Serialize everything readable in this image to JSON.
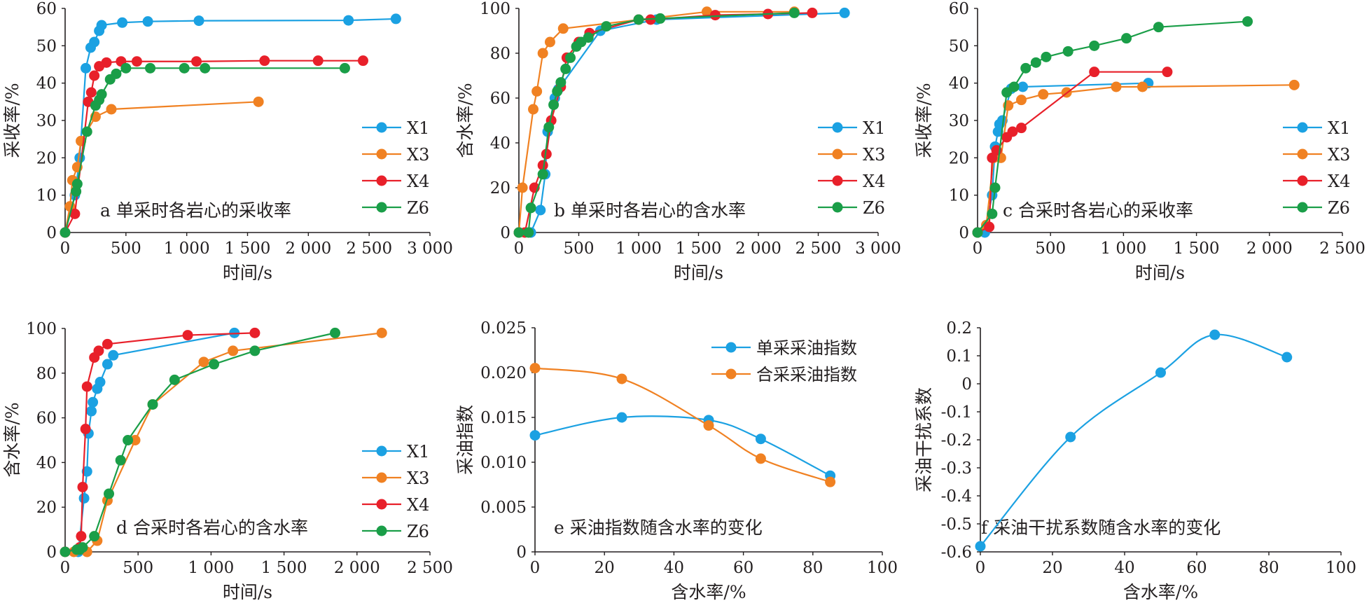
{
  "series_styles": {
    "X1": {
      "color": "#1ba1e2"
    },
    "X3": {
      "color": "#f08122"
    },
    "X4": {
      "color": "#e8202a"
    },
    "Z6": {
      "color": "#1a9e48"
    },
    "单采采油指数": {
      "color": "#1ba1e2"
    },
    "合采采油指数": {
      "color": "#f08122"
    }
  },
  "chart_data": [
    {
      "id": "a",
      "type": "line",
      "caption": "a 单采时各岩心的采收率",
      "xlabel": "时间/s",
      "ylabel": "采收率/%",
      "xlim": [
        0,
        3000
      ],
      "ylim": [
        0,
        60
      ],
      "xticks": [
        0,
        500,
        1000,
        1500,
        2000,
        2500,
        3000
      ],
      "xticklabels": [
        "0",
        "500",
        "1 000",
        "1 500",
        "2 000",
        "2 500",
        "3 000"
      ],
      "yticks": [
        0,
        10,
        20,
        30,
        40,
        50,
        60
      ],
      "yticklabels": [
        "0",
        "10",
        "20",
        "30",
        "40",
        "50",
        "60"
      ],
      "legend_position": "lower-right",
      "series": [
        {
          "name": "X1",
          "points": [
            [
              0,
              0
            ],
            [
              80,
              10
            ],
            [
              120,
              20
            ],
            [
              170,
              44
            ],
            [
              210,
              49.5
            ],
            [
              240,
              51
            ],
            [
              280,
              54
            ],
            [
              300,
              55.5
            ],
            [
              470,
              56.2
            ],
            [
              680,
              56.5
            ],
            [
              1100,
              56.7
            ],
            [
              2330,
              56.8
            ],
            [
              2720,
              57.2
            ]
          ]
        },
        {
          "name": "X3",
          "points": [
            [
              0,
              0
            ],
            [
              40,
              7
            ],
            [
              60,
              14
            ],
            [
              100,
              17.5
            ],
            [
              130,
              24.5
            ],
            [
              250,
              31
            ],
            [
              380,
              33
            ],
            [
              1590,
              35
            ]
          ]
        },
        {
          "name": "X4",
          "points": [
            [
              0,
              0
            ],
            [
              80,
              5
            ],
            [
              190,
              35
            ],
            [
              215,
              37.5
            ],
            [
              240,
              42
            ],
            [
              280,
              44.5
            ],
            [
              340,
              45.5
            ],
            [
              460,
              45.8
            ],
            [
              590,
              45.8
            ],
            [
              1080,
              45.8
            ],
            [
              1640,
              46
            ],
            [
              2080,
              46
            ],
            [
              2450,
              46
            ]
          ]
        },
        {
          "name": "Z6",
          "points": [
            [
              0,
              0
            ],
            [
              90,
              11
            ],
            [
              100,
              13
            ],
            [
              180,
              27
            ],
            [
              250,
              34
            ],
            [
              280,
              35.5
            ],
            [
              300,
              37
            ],
            [
              370,
              41
            ],
            [
              420,
              42.5
            ],
            [
              500,
              44
            ],
            [
              700,
              44
            ],
            [
              980,
              44
            ],
            [
              1150,
              44
            ],
            [
              2300,
              44
            ]
          ]
        }
      ]
    },
    {
      "id": "b",
      "type": "line",
      "caption": "b 单采时各岩心的含水率",
      "xlabel": "时间/s",
      "ylabel": "含水率/%",
      "xlim": [
        0,
        3000
      ],
      "ylim": [
        0,
        100
      ],
      "xticks": [
        0,
        500,
        1000,
        1500,
        2000,
        2500,
        3000
      ],
      "xticklabels": [
        "0",
        "500",
        "1 000",
        "1 500",
        "2 000",
        "2 500",
        "3 000"
      ],
      "yticks": [
        0,
        20,
        40,
        60,
        80,
        100
      ],
      "yticklabels": [
        "0",
        "20",
        "40",
        "60",
        "80",
        "100"
      ],
      "legend_position": "lower-right",
      "series": [
        {
          "name": "X1",
          "points": [
            [
              0,
              0
            ],
            [
              100,
              0
            ],
            [
              180,
              10
            ],
            [
              220,
              26
            ],
            [
              240,
              45
            ],
            [
              300,
              60
            ],
            [
              330,
              64
            ],
            [
              680,
              90
            ],
            [
              1150,
              95
            ],
            [
              2720,
              98
            ]
          ]
        },
        {
          "name": "X3",
          "points": [
            [
              0,
              0
            ],
            [
              30,
              20
            ],
            [
              120,
              55
            ],
            [
              150,
              63
            ],
            [
              200,
              80
            ],
            [
              260,
              85
            ],
            [
              370,
              91
            ],
            [
              1570,
              98.5
            ],
            [
              2300,
              98.5
            ]
          ]
        },
        {
          "name": "X4",
          "points": [
            [
              0,
              0
            ],
            [
              50,
              0
            ],
            [
              130,
              20
            ],
            [
              200,
              30
            ],
            [
              230,
              35
            ],
            [
              270,
              50
            ],
            [
              350,
              65
            ],
            [
              400,
              78
            ],
            [
              500,
              85
            ],
            [
              590,
              89
            ],
            [
              1000,
              95
            ],
            [
              1100,
              95
            ],
            [
              1640,
              97
            ],
            [
              2080,
              97.5
            ],
            [
              2450,
              98
            ]
          ]
        },
        {
          "name": "Z6",
          "points": [
            [
              0,
              0
            ],
            [
              80,
              0
            ],
            [
              100,
              11
            ],
            [
              200,
              26
            ],
            [
              250,
              47
            ],
            [
              290,
              57
            ],
            [
              320,
              63
            ],
            [
              350,
              67
            ],
            [
              390,
              73
            ],
            [
              430,
              78
            ],
            [
              480,
              83
            ],
            [
              520,
              85
            ],
            [
              580,
              87
            ],
            [
              730,
              92
            ],
            [
              1000,
              95
            ],
            [
              1180,
              95.5
            ],
            [
              2300,
              98
            ]
          ]
        }
      ]
    },
    {
      "id": "c",
      "type": "line",
      "caption": "c 合采时各岩心的采收率",
      "xlabel": "时间/s",
      "ylabel": "采收率/%",
      "xlim": [
        0,
        2500
      ],
      "ylim": [
        0,
        60
      ],
      "xticks": [
        0,
        500,
        1000,
        1500,
        2000,
        2500
      ],
      "xticklabels": [
        "0",
        "500",
        "1 000",
        "1 500",
        "2 000",
        "2 500"
      ],
      "yticks": [
        0,
        10,
        20,
        30,
        40,
        50,
        60
      ],
      "yticklabels": [
        "0",
        "10",
        "20",
        "30",
        "40",
        "50",
        "60"
      ],
      "legend_position": "lower-right",
      "series": [
        {
          "name": "X1",
          "points": [
            [
              0,
              0
            ],
            [
              50,
              0
            ],
            [
              100,
              10
            ],
            [
              120,
              23
            ],
            [
              140,
              27
            ],
            [
              150,
              29
            ],
            [
              170,
              30
            ],
            [
              230,
              38.5
            ],
            [
              310,
              39
            ],
            [
              1170,
              40
            ]
          ]
        },
        {
          "name": "X3",
          "points": [
            [
              0,
              0
            ],
            [
              60,
              2
            ],
            [
              110,
              20
            ],
            [
              160,
              20
            ],
            [
              210,
              34
            ],
            [
              300,
              35.5
            ],
            [
              450,
              37
            ],
            [
              610,
              37.5
            ],
            [
              950,
              39
            ],
            [
              1130,
              39
            ],
            [
              2170,
              39.5
            ]
          ]
        },
        {
          "name": "X4",
          "points": [
            [
              0,
              0
            ],
            [
              80,
              1.5
            ],
            [
              100,
              20
            ],
            [
              130,
              22
            ],
            [
              200,
              25.5
            ],
            [
              240,
              27
            ],
            [
              300,
              28
            ],
            [
              800,
              43
            ],
            [
              1300,
              43
            ]
          ]
        },
        {
          "name": "Z6",
          "points": [
            [
              0,
              0
            ],
            [
              100,
              5
            ],
            [
              120,
              12
            ],
            [
              200,
              37.5
            ],
            [
              250,
              39
            ],
            [
              330,
              44
            ],
            [
              400,
              45.5
            ],
            [
              470,
              47
            ],
            [
              620,
              48.5
            ],
            [
              800,
              50
            ],
            [
              1020,
              52
            ],
            [
              1240,
              55
            ],
            [
              1850,
              56.5
            ]
          ]
        }
      ]
    },
    {
      "id": "d",
      "type": "line",
      "caption": "d 合采时各岩心的含水率",
      "xlabel": "时间/s",
      "ylabel": "含水率/%",
      "xlim": [
        0,
        2500
      ],
      "ylim": [
        0,
        100
      ],
      "xticks": [
        0,
        500,
        1000,
        1500,
        2000,
        2500
      ],
      "xticklabels": [
        "0",
        "500",
        "1 000",
        "1 500",
        "2 000",
        "2 500"
      ],
      "yticks": [
        0,
        20,
        40,
        60,
        80,
        100
      ],
      "yticklabels": [
        "0",
        "20",
        "40",
        "60",
        "80",
        "100"
      ],
      "legend_position": "lower-right",
      "series": [
        {
          "name": "X1",
          "points": [
            [
              0,
              0
            ],
            [
              90,
              0
            ],
            [
              130,
              24
            ],
            [
              150,
              36
            ],
            [
              160,
              53
            ],
            [
              180,
              63
            ],
            [
              190,
              67
            ],
            [
              220,
              73
            ],
            [
              240,
              76
            ],
            [
              290,
              84
            ],
            [
              330,
              88
            ],
            [
              1160,
              98
            ]
          ]
        },
        {
          "name": "X3",
          "points": [
            [
              0,
              0
            ],
            [
              60,
              0
            ],
            [
              150,
              0
            ],
            [
              220,
              5
            ],
            [
              290,
              23
            ],
            [
              480,
              50
            ],
            [
              600,
              66
            ],
            [
              950,
              85
            ],
            [
              1150,
              90
            ],
            [
              2170,
              98
            ]
          ]
        },
        {
          "name": "X4",
          "points": [
            [
              0,
              0
            ],
            [
              100,
              2
            ],
            [
              110,
              7
            ],
            [
              120,
              29
            ],
            [
              140,
              55
            ],
            [
              150,
              74
            ],
            [
              200,
              87
            ],
            [
              230,
              90
            ],
            [
              290,
              93
            ],
            [
              840,
              97
            ],
            [
              1300,
              98
            ]
          ]
        },
        {
          "name": "Z6",
          "points": [
            [
              0,
              0
            ],
            [
              80,
              1
            ],
            [
              100,
              1
            ],
            [
              120,
              2
            ],
            [
              200,
              7
            ],
            [
              300,
              26
            ],
            [
              380,
              41
            ],
            [
              430,
              50
            ],
            [
              600,
              66
            ],
            [
              750,
              77
            ],
            [
              1020,
              84
            ],
            [
              1300,
              90
            ],
            [
              1850,
              98
            ]
          ]
        }
      ]
    },
    {
      "id": "e",
      "type": "line",
      "caption": "e 采油指数随含水率的变化",
      "xlabel": "含水率/%",
      "ylabel": "采油指数",
      "xlim": [
        0,
        100
      ],
      "ylim": [
        0,
        0.025
      ],
      "xticks": [
        0,
        20,
        40,
        60,
        80,
        100
      ],
      "xticklabels": [
        "0",
        "20",
        "40",
        "60",
        "80",
        "100"
      ],
      "yticks": [
        0,
        0.005,
        0.01,
        0.015,
        0.02,
        0.025
      ],
      "yticklabels": [
        "0",
        "0.005",
        "0.010",
        "0.015",
        "0.020",
        "0.025"
      ],
      "legend_position": "top-right",
      "smooth": true,
      "series": [
        {
          "name": "单采采油指数",
          "points": [
            [
              0,
              0.013
            ],
            [
              25,
              0.015
            ],
            [
              50,
              0.0147
            ],
            [
              65,
              0.0126
            ],
            [
              85,
              0.0085
            ]
          ]
        },
        {
          "name": "合采采油指数",
          "points": [
            [
              0,
              0.0205
            ],
            [
              25,
              0.0193
            ],
            [
              50,
              0.0141
            ],
            [
              65,
              0.0104
            ],
            [
              85,
              0.0078
            ]
          ]
        }
      ]
    },
    {
      "id": "f",
      "type": "line",
      "caption": "f 采油干扰系数随含水率的变化",
      "xlabel": "含水率/%",
      "ylabel": "采油干扰系数",
      "xlim": [
        0,
        100
      ],
      "ylim": [
        -0.6,
        0.2
      ],
      "xticks": [
        0,
        20,
        40,
        60,
        80,
        100
      ],
      "xticklabels": [
        "0",
        "20",
        "40",
        "60",
        "80",
        "100"
      ],
      "yticks": [
        -0.6,
        -0.5,
        -0.4,
        -0.3,
        -0.2,
        -0.1,
        0,
        0.1,
        0.2
      ],
      "yticklabels": [
        "-0.6",
        "-0.5",
        "-0.4",
        "-0.3",
        "-0.2",
        "-0.1",
        "0",
        "0.1",
        "0.2"
      ],
      "legend_position": "none",
      "smooth": true,
      "series": [
        {
          "name": "",
          "color": "#1ba1e2",
          "points": [
            [
              0,
              -0.58
            ],
            [
              25,
              -0.19
            ],
            [
              50,
              0.04
            ],
            [
              65,
              0.175
            ],
            [
              85,
              0.095
            ]
          ]
        }
      ]
    }
  ]
}
